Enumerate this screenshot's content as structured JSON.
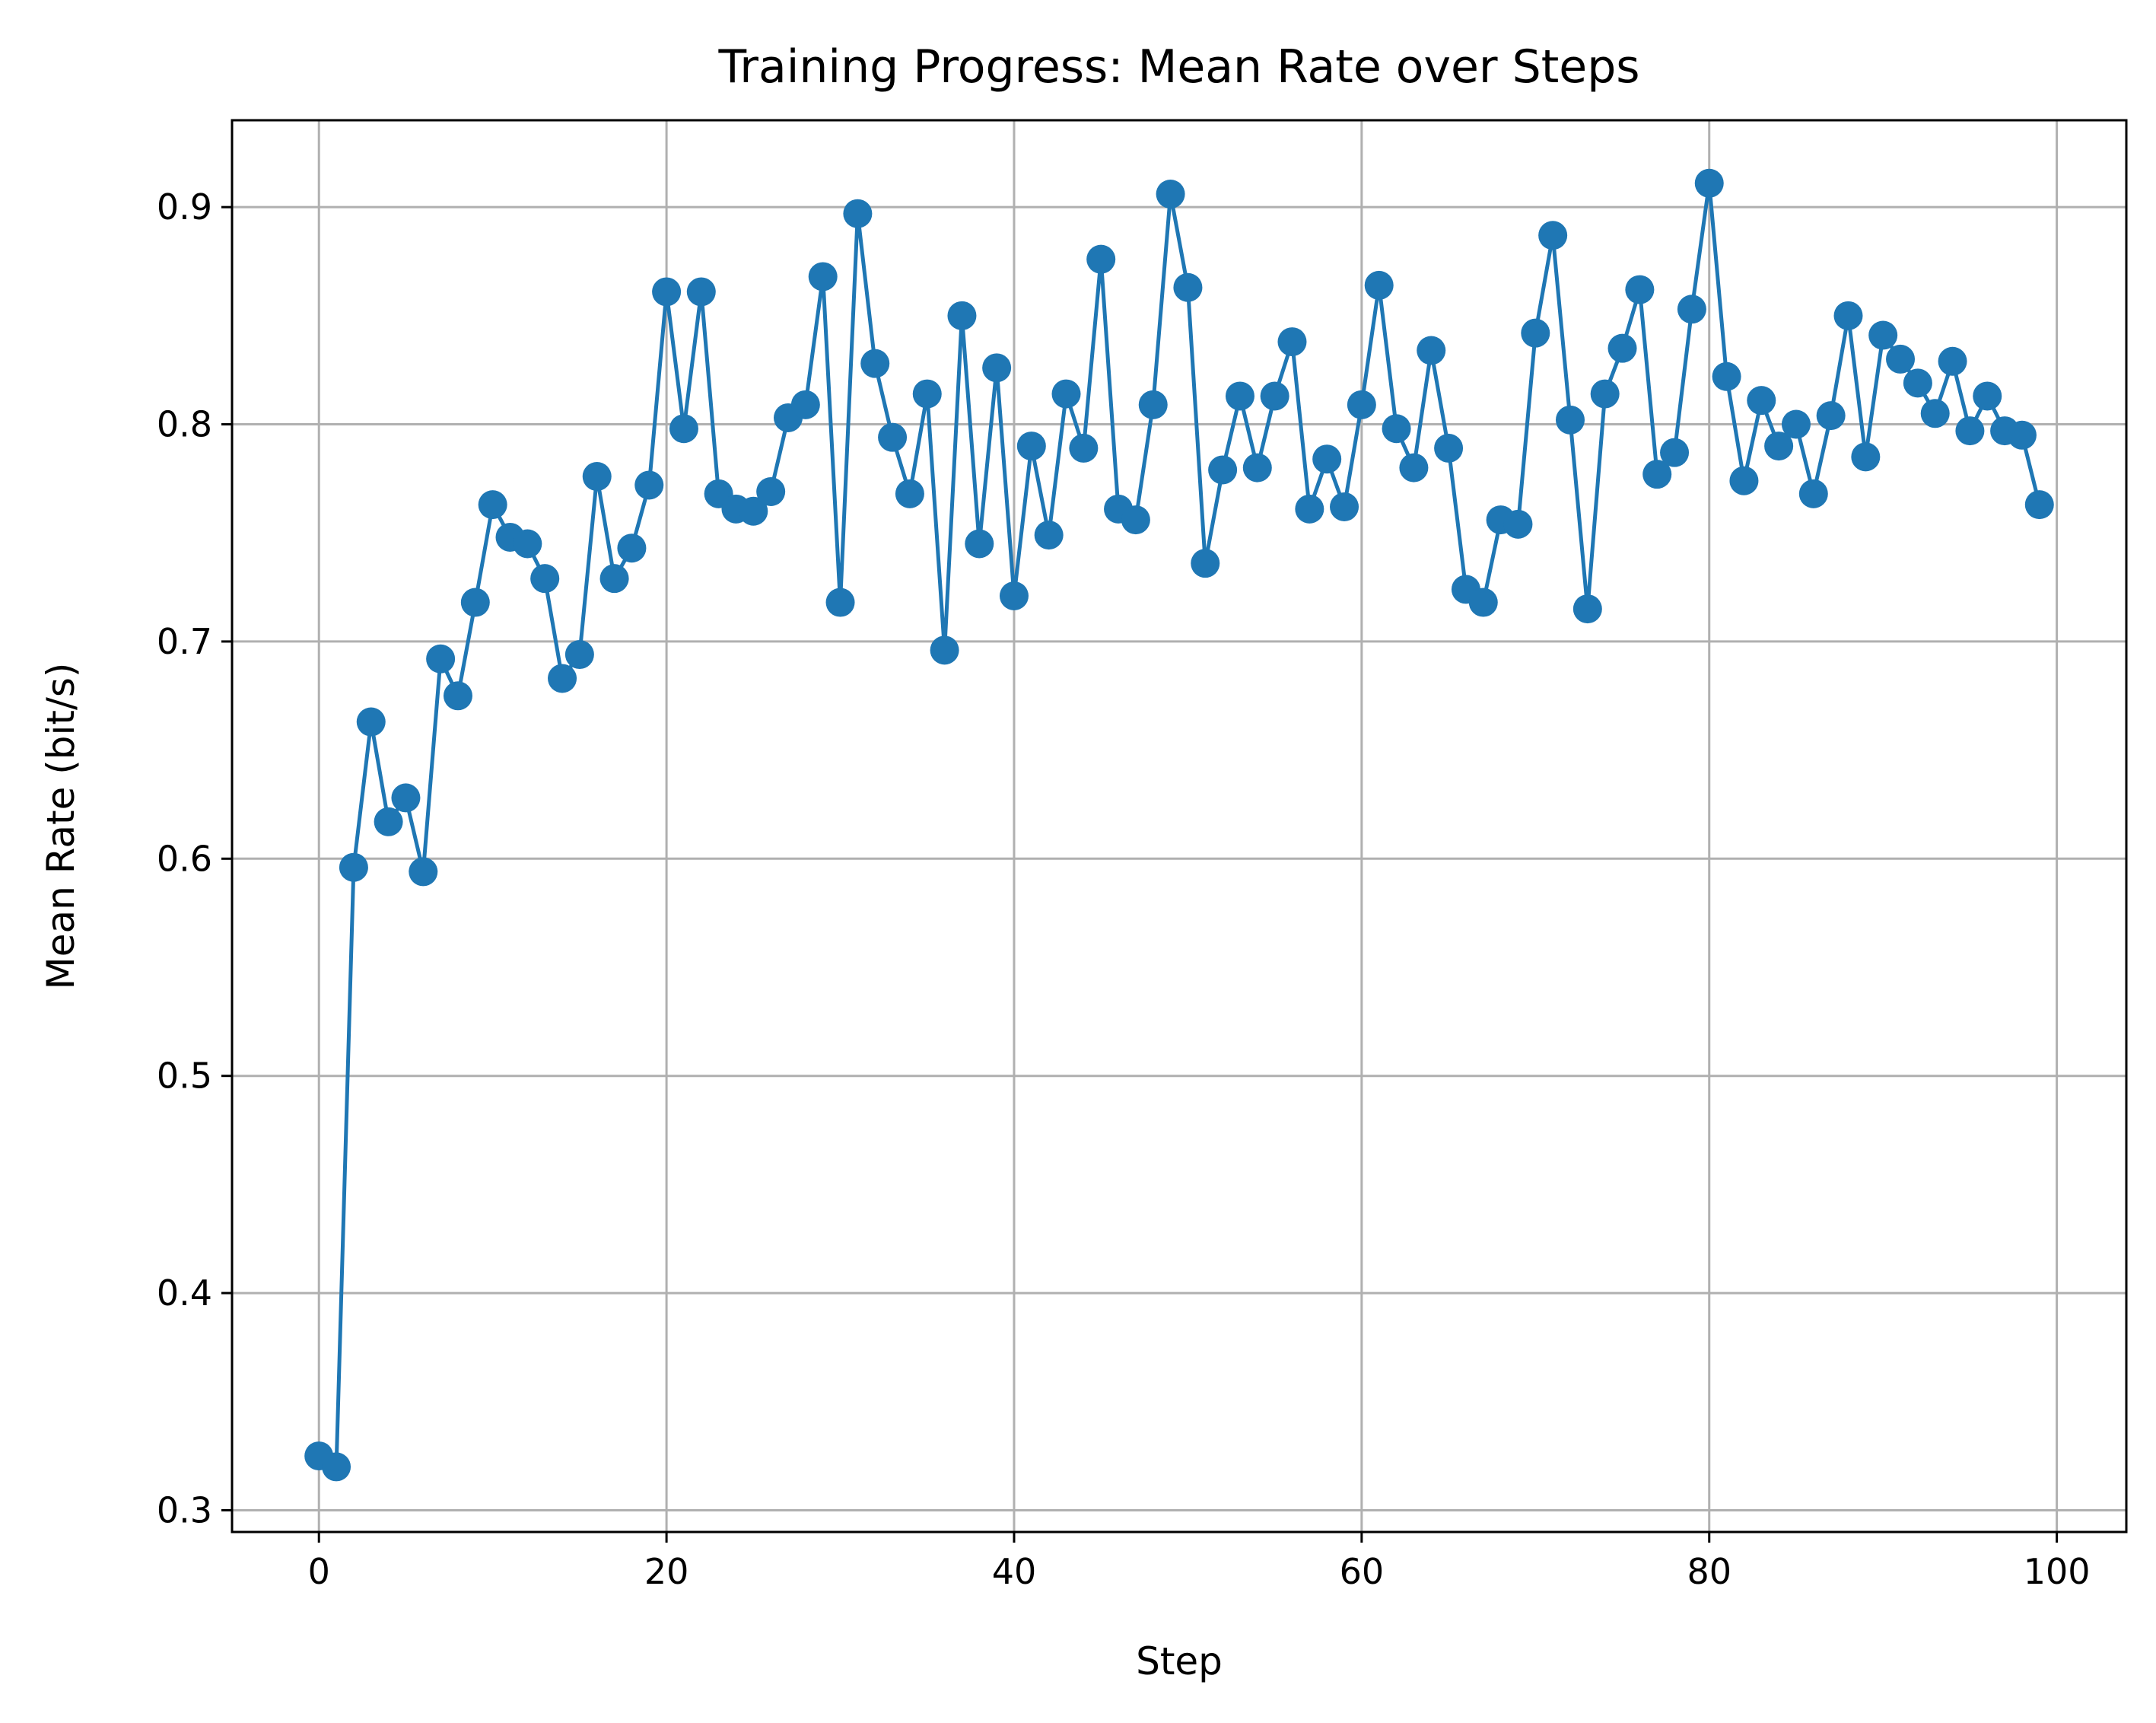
{
  "chart_data": {
    "type": "line",
    "title": "Training Progress: Mean Rate over Steps",
    "xlabel": "Step",
    "ylabel": "Mean Rate (bit/s)",
    "xlim": [
      -5,
      104
    ],
    "ylim": [
      0.29,
      0.94
    ],
    "xticks": [
      0,
      20,
      40,
      60,
      80,
      100
    ],
    "yticks": [
      0.3,
      0.4,
      0.5,
      0.6,
      0.7,
      0.8,
      0.9
    ],
    "xtick_labels": [
      "0",
      "20",
      "40",
      "60",
      "80",
      "100"
    ],
    "ytick_labels": [
      "0.3",
      "0.4",
      "0.5",
      "0.6",
      "0.7",
      "0.8",
      "0.9"
    ],
    "grid": true,
    "legend": false,
    "color": "#1f77b4",
    "marker": "circle",
    "x": [
      0,
      1,
      2,
      3,
      4,
      5,
      6,
      7,
      8,
      9,
      10,
      11,
      12,
      13,
      14,
      15,
      16,
      17,
      18,
      19,
      20,
      21,
      22,
      23,
      24,
      25,
      26,
      27,
      28,
      29,
      30,
      31,
      32,
      33,
      34,
      35,
      36,
      37,
      38,
      39,
      40,
      41,
      42,
      43,
      44,
      45,
      46,
      47,
      48,
      49,
      50,
      51,
      52,
      53,
      54,
      55,
      56,
      57,
      58,
      59,
      60,
      61,
      62,
      63,
      64,
      65,
      66,
      67,
      68,
      69,
      70,
      71,
      72,
      73,
      74,
      75,
      76,
      77,
      78,
      79,
      80,
      81,
      82,
      83,
      84,
      85,
      86,
      87,
      88,
      89,
      90,
      91,
      92,
      93,
      94,
      95,
      96,
      97,
      98,
      99
    ],
    "y": [
      0.325,
      0.32,
      0.596,
      0.663,
      0.617,
      0.628,
      0.594,
      0.692,
      0.675,
      0.718,
      0.763,
      0.748,
      0.745,
      0.729,
      0.683,
      0.694,
      0.776,
      0.729,
      0.743,
      0.772,
      0.861,
      0.798,
      0.861,
      0.768,
      0.761,
      0.76,
      0.769,
      0.803,
      0.809,
      0.868,
      0.718,
      0.897,
      0.828,
      0.794,
      0.768,
      0.814,
      0.696,
      0.85,
      0.745,
      0.826,
      0.721,
      0.79,
      0.749,
      0.814,
      0.789,
      0.876,
      0.761,
      0.756,
      0.809,
      0.906,
      0.863,
      0.736,
      0.779,
      0.813,
      0.78,
      0.813,
      0.838,
      0.761,
      0.784,
      0.762,
      0.809,
      0.864,
      0.798,
      0.78,
      0.834,
      0.789,
      0.724,
      0.718,
      0.756,
      0.754,
      0.842,
      0.887,
      0.802,
      0.715,
      0.814,
      0.835,
      0.862,
      0.777,
      0.787,
      0.853,
      0.911,
      0.822,
      0.774,
      0.811,
      0.79,
      0.8,
      0.768,
      0.804,
      0.85,
      0.785,
      0.841,
      0.83,
      0.819,
      0.805,
      0.829,
      0.797,
      0.813,
      0.797,
      0.795,
      0.763
    ]
  }
}
